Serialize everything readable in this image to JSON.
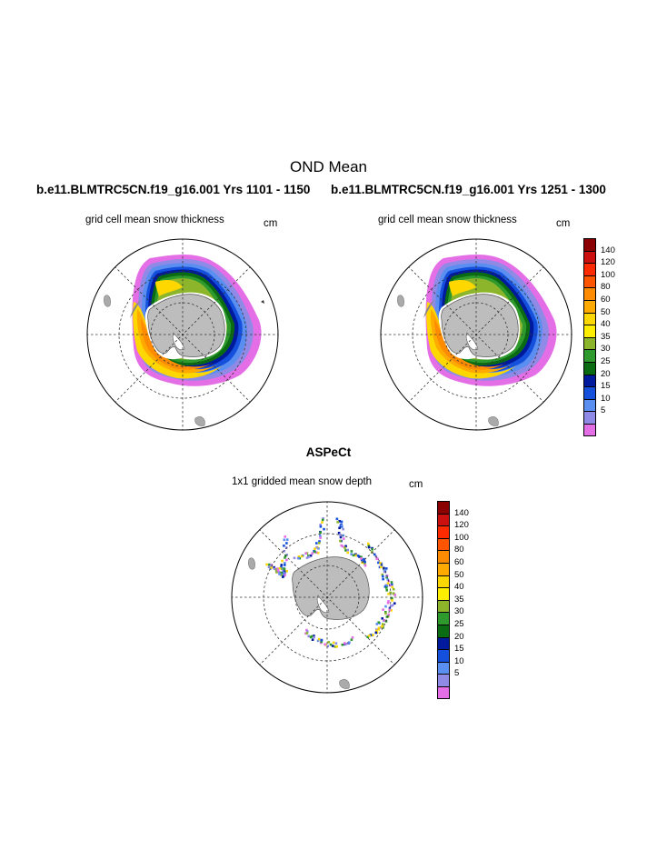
{
  "figure": {
    "title": "OND Mean",
    "run_left": "b.e11.BLMTRC5CN.f19_g16.001  Yrs 1101 - 1150",
    "run_right": "b.e11.BLMTRC5CN.f19_g16.001  Yrs 1251 - 1300",
    "obs_title": "ASPeCt"
  },
  "panels": [
    {
      "label": "grid cell mean snow thickness",
      "units": "cm"
    },
    {
      "label": "grid cell mean snow thickness",
      "units": "cm"
    },
    {
      "label": "1x1 gridded mean snow depth",
      "units": "cm"
    }
  ],
  "colorbar": {
    "labels": [
      "140",
      "120",
      "100",
      "80",
      "60",
      "50",
      "40",
      "35",
      "30",
      "25",
      "20",
      "15",
      "10",
      "5"
    ],
    "colors": [
      "#8b0000",
      "#cc1010",
      "#ff2a00",
      "#ff5500",
      "#ff8c00",
      "#ffaa00",
      "#ffd700",
      "#ffee00",
      "#8db52c",
      "#2e9a2e",
      "#0b6b12",
      "#001a9e",
      "#1450dc",
      "#5a8ef0",
      "#8f8ae6",
      "#e46ee6"
    ]
  },
  "chart_data": {
    "type": "heatmap",
    "projection": "south polar stereographic",
    "variable": "snow thickness",
    "units": "cm",
    "levels": [
      5,
      10,
      15,
      20,
      25,
      30,
      35,
      40,
      50,
      60,
      80,
      100,
      120,
      140
    ],
    "panels": [
      "grid cell mean snow thickness",
      "grid cell mean snow thickness",
      "1x1 gridded mean snow depth"
    ]
  }
}
